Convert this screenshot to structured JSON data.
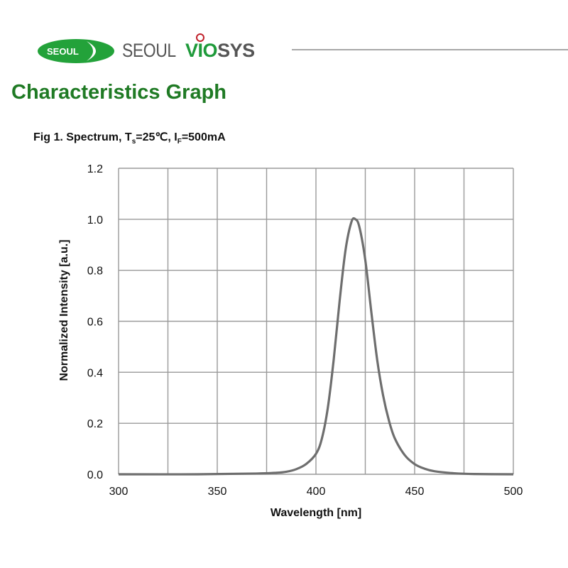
{
  "header": {
    "logo_badge_text": "SEOUL",
    "brand_part1": "SEOUL",
    "brand_part2": "VIO",
    "brand_part3": "SYS",
    "brand_green": "#1e9a3a",
    "brand_grey": "#555555"
  },
  "page": {
    "title": "Characteristics Graph",
    "title_color": "#1f7a24",
    "fig_caption_prefix": "Fig 1. Spectrum, T",
    "fig_caption_sub1": "s",
    "fig_caption_mid": "=25℃, I",
    "fig_caption_sub2": "F",
    "fig_caption_suffix": "=500mA"
  },
  "chart_data": {
    "type": "line",
    "title": "Fig 1. Spectrum, Ts=25℃, IF=500mA",
    "xlabel": "Wavelength [nm]",
    "ylabel": "Normalized Intensity [a.u.]",
    "xlim": [
      300,
      500
    ],
    "ylim": [
      0.0,
      1.2
    ],
    "xticks": [
      300,
      350,
      400,
      450,
      500
    ],
    "xtick_labels": [
      "300",
      "350",
      "400",
      "450",
      "500"
    ],
    "yticks": [
      0.0,
      0.2,
      0.4,
      0.6,
      0.8,
      1.0,
      1.2
    ],
    "ytick_labels": [
      "0.0",
      "0.2",
      "0.4",
      "0.6",
      "0.8",
      "1.0",
      "1.2"
    ],
    "grid": true,
    "grid_x_step": 25,
    "legend": null,
    "series": [
      {
        "name": "Spectrum",
        "color": "#6e6e6e",
        "x": [
          300,
          340,
          370,
          380,
          385,
          390,
          395,
          400,
          403,
          406,
          409,
          412,
          415,
          418,
          420,
          422,
          425,
          428,
          431,
          434,
          437,
          440,
          445,
          450,
          455,
          460,
          470,
          480,
          500
        ],
        "y": [
          0.0,
          0.0,
          0.003,
          0.006,
          0.01,
          0.02,
          0.04,
          0.08,
          0.14,
          0.26,
          0.45,
          0.68,
          0.88,
          0.99,
          1.0,
          0.97,
          0.84,
          0.64,
          0.45,
          0.31,
          0.21,
          0.14,
          0.075,
          0.04,
          0.022,
          0.012,
          0.004,
          0.001,
          0.0
        ]
      }
    ]
  }
}
